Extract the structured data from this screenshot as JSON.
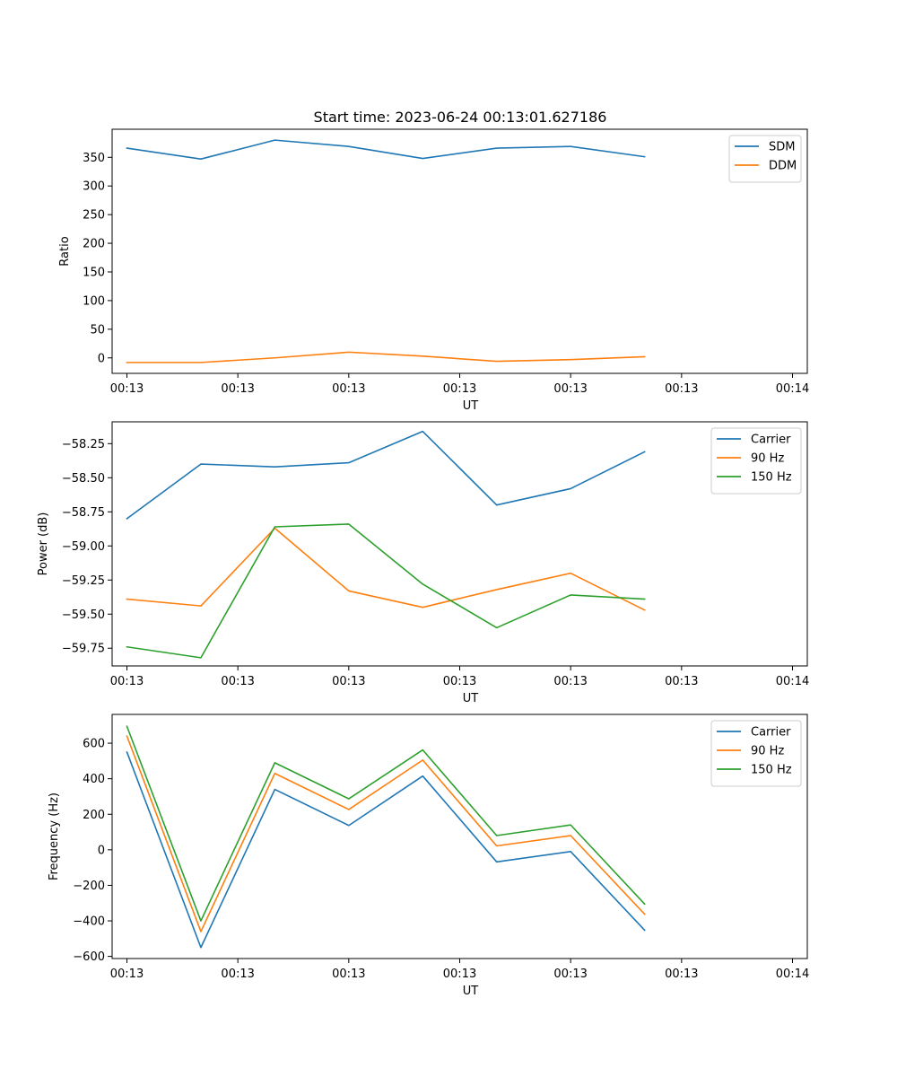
{
  "title": "Start time: 2023-06-24 00:13:01.627186",
  "colors": {
    "blue": "#1f77b4",
    "orange": "#ff7f0e",
    "green": "#2ca02c"
  },
  "chart_data": [
    {
      "type": "line",
      "title": "Start time: 2023-06-24 00:13:01.627186",
      "xlabel": "UT",
      "ylabel": "Ratio",
      "x": [
        1,
        2,
        3,
        4,
        5,
        6,
        7,
        8
      ],
      "xlim": [
        0.8,
        10.2
      ],
      "x_ticks": [
        1,
        2.5,
        4,
        5.5,
        7,
        8.5,
        10
      ],
      "x_tick_labels": [
        "00:13",
        "00:13",
        "00:13",
        "00:13",
        "00:13",
        "00:13",
        "00:14"
      ],
      "ylim": [
        -27,
        399
      ],
      "y_ticks": [
        0,
        50,
        100,
        150,
        200,
        250,
        300,
        350
      ],
      "y_tick_labels": [
        "0",
        "50",
        "100",
        "150",
        "200",
        "250",
        "300",
        "350"
      ],
      "grid": false,
      "legend": "top-right",
      "series": [
        {
          "name": "SDM",
          "color": "#1f77b4",
          "values": [
            366,
            347,
            380,
            369,
            348,
            366,
            369,
            351
          ]
        },
        {
          "name": "DDM",
          "color": "#ff7f0e",
          "values": [
            -8,
            -8,
            0,
            10,
            3,
            -6,
            -3,
            2
          ]
        }
      ]
    },
    {
      "type": "line",
      "xlabel": "UT",
      "ylabel": "Power (dB)",
      "x": [
        1,
        2,
        3,
        4,
        5,
        6,
        7,
        8
      ],
      "xlim": [
        0.8,
        10.2
      ],
      "x_ticks": [
        1,
        2.5,
        4,
        5.5,
        7,
        8.5,
        10
      ],
      "x_tick_labels": [
        "00:13",
        "00:13",
        "00:13",
        "00:13",
        "00:13",
        "00:13",
        "00:14"
      ],
      "ylim": [
        -59.88,
        -58.09
      ],
      "y_ticks": [
        -59.75,
        -59.5,
        -59.25,
        -59.0,
        -58.75,
        -58.5,
        -58.25
      ],
      "y_tick_labels": [
        "−59.75",
        "−59.50",
        "−59.25",
        "−59.00",
        "−58.75",
        "−58.50",
        "−58.25"
      ],
      "grid": false,
      "legend": "top-right",
      "series": [
        {
          "name": "Carrier",
          "color": "#1f77b4",
          "values": [
            -58.8,
            -58.4,
            -58.42,
            -58.39,
            -58.16,
            -58.7,
            -58.58,
            -58.31
          ]
        },
        {
          "name": "90 Hz",
          "color": "#ff7f0e",
          "values": [
            -59.39,
            -59.44,
            -58.87,
            -59.33,
            -59.45,
            -59.32,
            -59.2,
            -59.47
          ]
        },
        {
          "name": "150 Hz",
          "color": "#2ca02c",
          "values": [
            -59.74,
            -59.82,
            -58.86,
            -58.84,
            -59.28,
            -59.6,
            -59.36,
            -59.39
          ]
        }
      ]
    },
    {
      "type": "line",
      "xlabel": "UT",
      "ylabel": "Frequency (Hz)",
      "x": [
        1,
        2,
        3,
        4,
        5,
        6,
        7,
        8
      ],
      "xlim": [
        0.8,
        10.2
      ],
      "x_ticks": [
        1,
        2.5,
        4,
        5.5,
        7,
        8.5,
        10
      ],
      "x_tick_labels": [
        "00:13",
        "00:13",
        "00:13",
        "00:13",
        "00:13",
        "00:13",
        "00:14"
      ],
      "ylim": [
        -612,
        762
      ],
      "y_ticks": [
        -600,
        -400,
        -200,
        0,
        200,
        400,
        600
      ],
      "y_tick_labels": [
        "−600",
        "−400",
        "−200",
        "0",
        "200",
        "400",
        "600"
      ],
      "grid": false,
      "legend": "top-right",
      "series": [
        {
          "name": "Carrier",
          "color": "#1f77b4",
          "values": [
            550,
            -550,
            340,
            137,
            415,
            -68,
            -10,
            -452
          ]
        },
        {
          "name": "90 Hz",
          "color": "#ff7f0e",
          "values": [
            640,
            -460,
            430,
            227,
            505,
            22,
            80,
            -362
          ]
        },
        {
          "name": "150 Hz",
          "color": "#2ca02c",
          "values": [
            695,
            -400,
            490,
            287,
            562,
            80,
            140,
            -305
          ]
        }
      ]
    }
  ]
}
